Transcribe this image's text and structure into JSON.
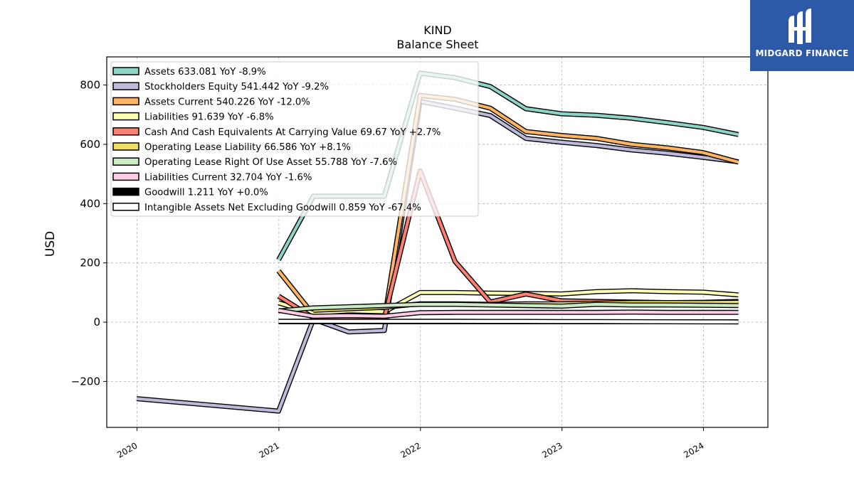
{
  "chart_data": {
    "type": "line",
    "title": "KIND",
    "subtitle": "Balance  Sheet",
    "ylabel": "USD",
    "xlabel": "",
    "xlim": [
      "2019-10-15",
      "2024-06-15"
    ],
    "ylim": [
      -355,
      895
    ],
    "xticks": [
      {
        "date": "2020-01-01",
        "label": "2020"
      },
      {
        "date": "2021-01-01",
        "label": "2021"
      },
      {
        "date": "2022-01-01",
        "label": "2022"
      },
      {
        "date": "2023-01-01",
        "label": "2023"
      },
      {
        "date": "2024-01-01",
        "label": "2024"
      }
    ],
    "yticks": [
      -200,
      0,
      200,
      400,
      600,
      800
    ],
    "grid": true,
    "legend_position": "upper-left",
    "series": [
      {
        "name": "Assets",
        "legend": "Assets  633.081 YoY -8.9%",
        "color": "#8dd3c7",
        "points": [
          [
            "2020-12-31",
            210
          ],
          [
            "2021-03-31",
            425
          ],
          [
            "2021-06-30",
            425
          ],
          [
            "2021-09-30",
            425
          ],
          [
            "2021-12-31",
            840
          ],
          [
            "2022-03-31",
            825
          ],
          [
            "2022-06-30",
            795
          ],
          [
            "2022-09-30",
            720
          ],
          [
            "2022-12-31",
            703
          ],
          [
            "2023-03-31",
            698
          ],
          [
            "2023-06-30",
            688
          ],
          [
            "2023-09-30",
            673
          ],
          [
            "2023-12-31",
            657
          ],
          [
            "2024-03-31",
            633
          ]
        ]
      },
      {
        "name": "Stockholders Equity",
        "legend": "Stockholders Equity  541.442 YoY -9.2%",
        "color": "#bebada",
        "points": [
          [
            "2019-12-31",
            -258
          ],
          [
            "2020-12-31",
            -300
          ],
          [
            "2021-03-31",
            10
          ],
          [
            "2021-06-30",
            -33
          ],
          [
            "2021-09-30",
            -28
          ],
          [
            "2021-12-31",
            745
          ],
          [
            "2022-03-31",
            722
          ],
          [
            "2022-06-30",
            697
          ],
          [
            "2022-09-30",
            620
          ],
          [
            "2022-12-31",
            607
          ],
          [
            "2023-03-31",
            596
          ],
          [
            "2023-06-30",
            581
          ],
          [
            "2023-09-30",
            570
          ],
          [
            "2023-12-31",
            556
          ],
          [
            "2024-03-31",
            541
          ]
        ]
      },
      {
        "name": "Assets Current",
        "legend": "Assets Current  540.226 YoY -12.0%",
        "color": "#fdb462",
        "points": [
          [
            "2020-12-31",
            173
          ],
          [
            "2021-03-31",
            25
          ],
          [
            "2021-06-30",
            15
          ],
          [
            "2021-09-30",
            10
          ],
          [
            "2021-12-31",
            765
          ],
          [
            "2022-03-31",
            752
          ],
          [
            "2022-06-30",
            722
          ],
          [
            "2022-09-30",
            643
          ],
          [
            "2022-12-31",
            630
          ],
          [
            "2023-03-31",
            620
          ],
          [
            "2023-06-30",
            600
          ],
          [
            "2023-09-30",
            588
          ],
          [
            "2023-12-31",
            572
          ],
          [
            "2024-03-31",
            540
          ]
        ]
      },
      {
        "name": "Liabilities",
        "legend": "Liabilities  91.639 YoY -6.8%",
        "color": "#ffffb3",
        "points": [
          [
            "2020-12-31",
            65
          ],
          [
            "2021-03-31",
            30
          ],
          [
            "2021-06-30",
            38
          ],
          [
            "2021-09-30",
            35
          ],
          [
            "2021-12-31",
            100
          ],
          [
            "2022-03-31",
            100
          ],
          [
            "2022-06-30",
            98
          ],
          [
            "2022-09-30",
            97
          ],
          [
            "2022-12-31",
            95
          ],
          [
            "2023-03-31",
            103
          ],
          [
            "2023-06-30",
            106
          ],
          [
            "2023-09-30",
            103
          ],
          [
            "2023-12-31",
            101
          ],
          [
            "2024-03-31",
            92
          ]
        ]
      },
      {
        "name": "Cash And Cash Equivalents At Carrying Value",
        "legend": "Cash And Cash Equivalents At Carrying Value  69.67 YoY +2.7%",
        "color": "#fb8072",
        "points": [
          [
            "2020-12-31",
            88
          ],
          [
            "2021-03-31",
            15
          ],
          [
            "2021-06-30",
            12
          ],
          [
            "2021-09-30",
            14
          ],
          [
            "2021-12-31",
            510
          ],
          [
            "2022-03-31",
            205
          ],
          [
            "2022-06-30",
            68
          ],
          [
            "2022-09-30",
            95
          ],
          [
            "2022-12-31",
            72
          ],
          [
            "2023-03-31",
            70
          ],
          [
            "2023-06-30",
            68
          ],
          [
            "2023-09-30",
            66
          ],
          [
            "2023-12-31",
            67
          ],
          [
            "2024-03-31",
            70
          ]
        ]
      },
      {
        "name": "Operating Lease Liability",
        "legend": "Operating Lease Liability  66.586 YoY +8.1%",
        "color": "#f0e060",
        "points": [
          [
            "2021-03-31",
            40
          ],
          [
            "2021-06-30",
            45
          ],
          [
            "2021-09-30",
            50
          ],
          [
            "2021-12-31",
            62
          ],
          [
            "2022-03-31",
            62
          ],
          [
            "2022-06-30",
            60
          ],
          [
            "2022-09-30",
            62
          ],
          [
            "2022-12-31",
            62
          ],
          [
            "2023-03-31",
            64
          ],
          [
            "2023-06-30",
            66
          ],
          [
            "2023-09-30",
            66
          ],
          [
            "2023-12-31",
            66
          ],
          [
            "2024-03-31",
            67
          ]
        ]
      },
      {
        "name": "Operating Lease Right Of Use Asset",
        "legend": "Operating Lease Right Of Use Asset  55.788 YoY -7.6%",
        "color": "#ccebc5",
        "points": [
          [
            "2020-12-31",
            38
          ],
          [
            "2021-03-31",
            48
          ],
          [
            "2021-06-30",
            52
          ],
          [
            "2021-09-30",
            56
          ],
          [
            "2021-12-31",
            60
          ],
          [
            "2022-03-31",
            60
          ],
          [
            "2022-06-30",
            58
          ],
          [
            "2022-09-30",
            56
          ],
          [
            "2022-12-31",
            54
          ],
          [
            "2023-03-31",
            60
          ],
          [
            "2023-06-30",
            58
          ],
          [
            "2023-09-30",
            58
          ],
          [
            "2023-12-31",
            57
          ],
          [
            "2024-03-31",
            56
          ]
        ]
      },
      {
        "name": "Liabilities Current",
        "legend": "Liabilities Current  32.704 YoY -1.6%",
        "color": "#fccde5",
        "points": [
          [
            "2020-12-31",
            40
          ],
          [
            "2021-03-31",
            20
          ],
          [
            "2021-06-30",
            22
          ],
          [
            "2021-09-30",
            20
          ],
          [
            "2021-12-31",
            32
          ],
          [
            "2022-03-31",
            33
          ],
          [
            "2022-06-30",
            33
          ],
          [
            "2022-09-30",
            33
          ],
          [
            "2022-12-31",
            33
          ],
          [
            "2023-03-31",
            33
          ],
          [
            "2023-06-30",
            34
          ],
          [
            "2023-09-30",
            33
          ],
          [
            "2023-12-31",
            33
          ],
          [
            "2024-03-31",
            33
          ]
        ]
      },
      {
        "name": "Goodwill",
        "legend": "Goodwill  1.211 YoY +0.0%",
        "color": "#000000",
        "points": [
          [
            "2020-12-31",
            1.2
          ],
          [
            "2021-03-31",
            1.2
          ],
          [
            "2021-06-30",
            1.2
          ],
          [
            "2021-09-30",
            1.2
          ],
          [
            "2021-12-31",
            1.2
          ],
          [
            "2022-03-31",
            1.2
          ],
          [
            "2022-06-30",
            1.2
          ],
          [
            "2022-09-30",
            1.2
          ],
          [
            "2022-12-31",
            1.2
          ],
          [
            "2023-03-31",
            1.2
          ],
          [
            "2023-06-30",
            1.2
          ],
          [
            "2023-09-30",
            1.2
          ],
          [
            "2023-12-31",
            1.2
          ],
          [
            "2024-03-31",
            1.2
          ]
        ]
      },
      {
        "name": "Intangible Assets Net Excluding Goodwill",
        "legend": "Intangible Assets Net Excluding Goodwill  0.859 YoY -67.4%",
        "color": "#ffffff",
        "points": [
          [
            "2020-12-31",
            3
          ],
          [
            "2021-03-31",
            3
          ],
          [
            "2021-06-30",
            3
          ],
          [
            "2021-09-30",
            3
          ],
          [
            "2021-12-31",
            3
          ],
          [
            "2022-03-31",
            3
          ],
          [
            "2022-06-30",
            2.5
          ],
          [
            "2022-09-30",
            2.5
          ],
          [
            "2022-12-31",
            2
          ],
          [
            "2023-03-31",
            2
          ],
          [
            "2023-06-30",
            1.5
          ],
          [
            "2023-09-30",
            1.2
          ],
          [
            "2023-12-31",
            1
          ],
          [
            "2024-03-31",
            0.9
          ]
        ]
      }
    ]
  },
  "logo": {
    "text": "MIDGARD FINANCE",
    "bg_color": "#2c5aa8"
  }
}
